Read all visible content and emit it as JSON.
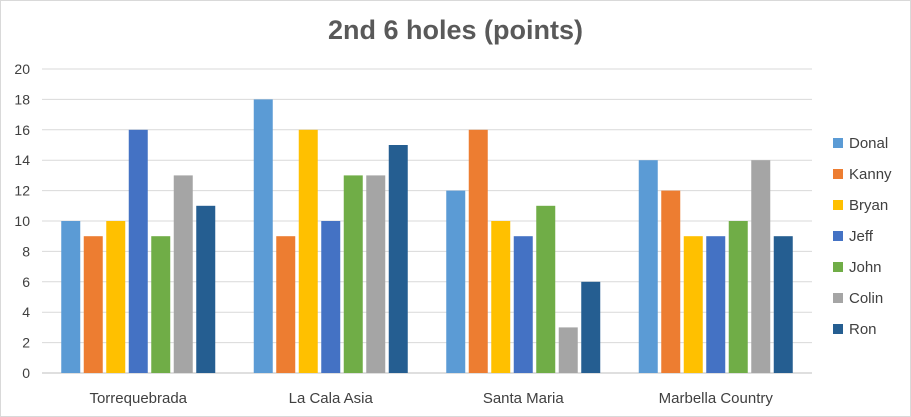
{
  "chart_data": {
    "type": "bar",
    "title": "2nd 6 holes (points)",
    "xlabel": "",
    "ylabel": "",
    "ylim": [
      0,
      20
    ],
    "yticks": [
      0,
      2,
      4,
      6,
      8,
      10,
      12,
      14,
      16,
      18,
      20
    ],
    "grid": true,
    "legend_position": "right",
    "categories": [
      "Torrequebrada",
      "La Cala Asia",
      "Santa Maria",
      "Marbella Country"
    ],
    "series": [
      {
        "name": "Donal",
        "color": "#5B9BD5",
        "values": [
          10,
          18,
          12,
          14
        ]
      },
      {
        "name": "Kanny",
        "color": "#ED7D31",
        "values": [
          9,
          9,
          16,
          12
        ]
      },
      {
        "name": "Bryan",
        "color": "#FFC000",
        "values": [
          10,
          16,
          10,
          9
        ]
      },
      {
        "name": "Jeff",
        "color": "#4472C4",
        "values": [
          16,
          10,
          9,
          9
        ]
      },
      {
        "name": "John",
        "color": "#70AD47",
        "values": [
          9,
          13,
          11,
          10
        ]
      },
      {
        "name": "Colin",
        "color": "#A5A5A5",
        "values": [
          13,
          13,
          3,
          14
        ]
      },
      {
        "name": "Ron",
        "color": "#255E91",
        "values": [
          11,
          15,
          6,
          9
        ]
      }
    ]
  }
}
